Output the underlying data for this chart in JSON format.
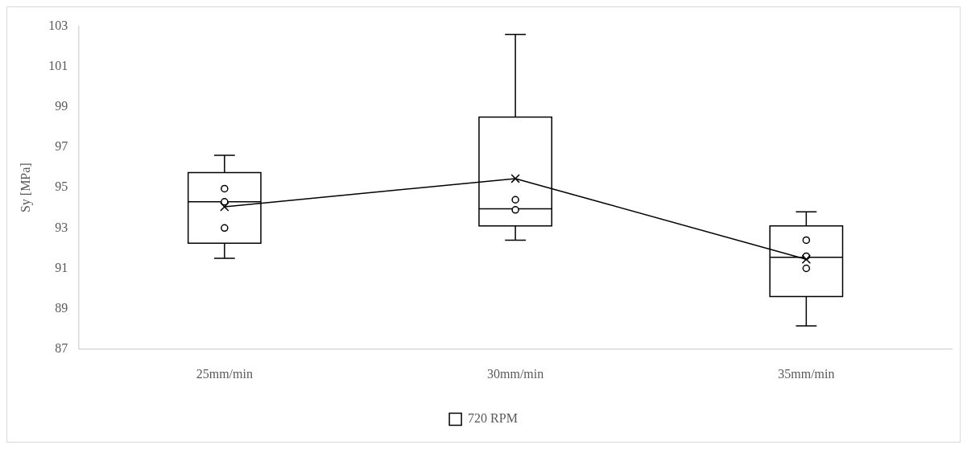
{
  "chart_data": {
    "type": "box",
    "ylabel": "Sy [MPa]",
    "categories": [
      "25mm/min",
      "30mm/min",
      "35mm/min"
    ],
    "ylim": [
      87,
      103
    ],
    "yticks": [
      87,
      89,
      91,
      93,
      95,
      97,
      99,
      101,
      103
    ],
    "grid": false,
    "legend": "bottom",
    "series": [
      {
        "name": "720 RPM",
        "color": "#000000",
        "boxes": [
          {
            "low": 91.5,
            "q1": 92.25,
            "median": 94.3,
            "q3": 95.75,
            "high": 96.6
          },
          {
            "low": 92.4,
            "q1": 93.1,
            "median": 93.95,
            "q3": 98.5,
            "high": 102.6
          },
          {
            "low": 88.15,
            "q1": 89.6,
            "median": 91.55,
            "q3": 93.1,
            "high": 93.8
          }
        ]
      },
      {
        "type": "line",
        "color": "#000000",
        "marker": "cross",
        "line_style": "solid",
        "values": [
          94.05,
          95.45,
          91.45
        ]
      },
      {
        "type": "scatter",
        "color": "#000000",
        "marker": "circle",
        "x": [
          "25mm/min",
          "25mm/min",
          "25mm/min",
          "30mm/min",
          "30mm/min",
          "35mm/min",
          "35mm/min",
          "35mm/min"
        ],
        "values": [
          94.95,
          94.3,
          93.0,
          94.4,
          93.9,
          92.4,
          91.6,
          91.0
        ]
      }
    ]
  }
}
